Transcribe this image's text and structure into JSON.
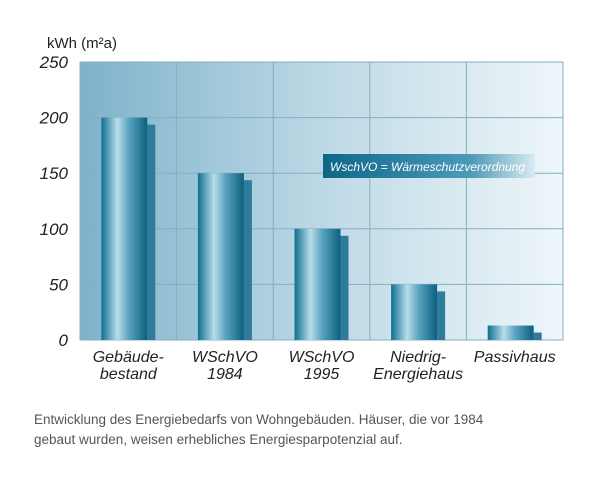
{
  "chart_data": {
    "type": "bar",
    "ylabel": "kWh (m²a)",
    "ylim": [
      0,
      250
    ],
    "yticks": [
      0,
      50,
      100,
      150,
      200,
      250
    ],
    "grid": true,
    "categories": [
      [
        "Gebäude-",
        "bestand"
      ],
      [
        "WSchVO",
        "1984"
      ],
      [
        "WSchVO",
        "1995"
      ],
      [
        "Niedrig-",
        "Energiehaus"
      ],
      [
        "Passivhaus"
      ]
    ],
    "values": [
      200,
      150,
      100,
      50,
      13
    ],
    "annotation": "WschVO = Wärmeschutzverordnung",
    "colors": {
      "bar_light": "#b9dde9",
      "bar_dark": "#0f6f91",
      "shadow": "#2f7b9c",
      "plot_left": "#7fb2ca",
      "plot_right": "#edf5f9",
      "grid": "#86aec0"
    }
  },
  "caption": {
    "line1": "Entwicklung des Energiebedarfs  von Wohngebäuden. Häuser, die vor 1984",
    "line2": "gebaut wurden, weisen erhebliches Energiesparpotenzial auf."
  }
}
